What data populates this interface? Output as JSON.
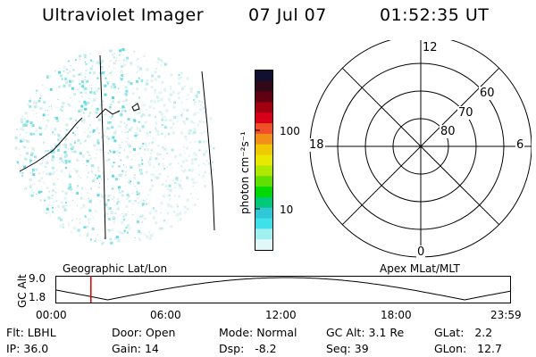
{
  "header": {
    "title": "Ultraviolet Imager",
    "date": "07 Jul 07",
    "time": "01:52:35 UT"
  },
  "colorbar": {
    "unit_label": "photon cm⁻²s⁻¹",
    "ticks": [
      "100",
      "10"
    ],
    "colors": [
      "#101030",
      "#300818",
      "#600010",
      "#a00010",
      "#d80018",
      "#f05028",
      "#f09018",
      "#f0c800",
      "#e8e800",
      "#b0e800",
      "#60e000",
      "#00d800",
      "#00c878",
      "#30c8d8",
      "#40e0e8",
      "#a0f0f0",
      "#e0f8f8"
    ]
  },
  "polar_plot": {
    "labels": {
      "top": "12",
      "bottom": "0",
      "left": "18",
      "right": "6",
      "ring_60": "60",
      "ring_70": "70",
      "ring_80": "80"
    }
  },
  "timeline": {
    "y_axis_label": "GC Alt",
    "y_max": "9.0",
    "y_min": "1.8",
    "left_label": "Geographic Lat/Lon",
    "right_label": "Apex MLat/MLT",
    "x_ticks": [
      "00:00",
      "06:00",
      "12:00",
      "18:00",
      "23:59"
    ],
    "marker_time_hours": 1.876,
    "marker_color": "#e00000"
  },
  "info": {
    "row1": [
      {
        "label": "Flt:",
        "value": "LBHL"
      },
      {
        "label": "Door:",
        "value": "Open"
      },
      {
        "label": "Mode:",
        "value": "Normal"
      },
      {
        "label": "GC Alt:",
        "value": "3.1 Re"
      },
      {
        "label": "GLat:",
        "value": "2.2"
      }
    ],
    "row2": [
      {
        "label": "IP:",
        "value": "36.0"
      },
      {
        "label": "Gain:",
        "value": "14"
      },
      {
        "label": "Dsp:",
        "value": "-8.2"
      },
      {
        "label": "Seq:",
        "value": "39"
      },
      {
        "label": "GLon:",
        "value": "12.7"
      }
    ]
  }
}
